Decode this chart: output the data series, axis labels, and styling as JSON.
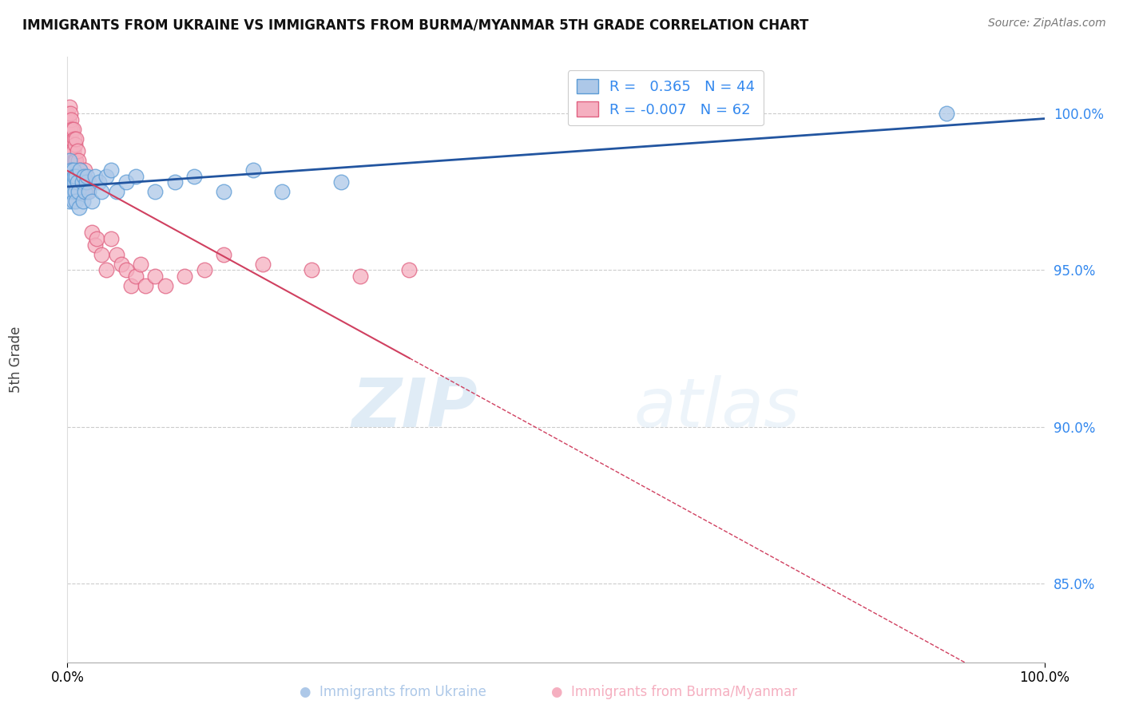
{
  "title": "IMMIGRANTS FROM UKRAINE VS IMMIGRANTS FROM BURMA/MYANMAR 5TH GRADE CORRELATION CHART",
  "source": "Source: ZipAtlas.com",
  "ylabel": "5th Grade",
  "y_ticks": [
    85.0,
    90.0,
    95.0,
    100.0
  ],
  "y_tick_labels": [
    "85.0%",
    "90.0%",
    "95.0%",
    "100.0%"
  ],
  "xlim": [
    0.0,
    1.0
  ],
  "ylim": [
    82.5,
    101.8
  ],
  "ukraine_R": 0.365,
  "ukraine_N": 44,
  "burma_R": -0.007,
  "burma_N": 62,
  "ukraine_color": "#adc8e8",
  "burma_color": "#f5afc0",
  "ukraine_edge_color": "#5b9bd5",
  "burma_edge_color": "#e06080",
  "ukraine_line_color": "#2255a0",
  "burma_line_color": "#d04060",
  "ukraine_scatter_x": [
    0.001,
    0.002,
    0.002,
    0.003,
    0.003,
    0.004,
    0.004,
    0.005,
    0.005,
    0.006,
    0.006,
    0.007,
    0.007,
    0.008,
    0.009,
    0.009,
    0.01,
    0.011,
    0.012,
    0.013,
    0.015,
    0.016,
    0.017,
    0.018,
    0.019,
    0.02,
    0.022,
    0.025,
    0.028,
    0.032,
    0.035,
    0.04,
    0.045,
    0.05,
    0.06,
    0.07,
    0.09,
    0.11,
    0.13,
    0.16,
    0.19,
    0.22,
    0.28,
    0.9
  ],
  "ukraine_scatter_y": [
    97.8,
    98.5,
    97.2,
    98.0,
    97.5,
    98.2,
    97.8,
    97.5,
    98.0,
    97.2,
    98.2,
    97.8,
    98.0,
    97.5,
    97.2,
    98.0,
    97.8,
    97.5,
    97.0,
    98.2,
    97.8,
    97.2,
    98.0,
    97.5,
    97.8,
    98.0,
    97.5,
    97.2,
    98.0,
    97.8,
    97.5,
    98.0,
    98.2,
    97.5,
    97.8,
    98.0,
    97.5,
    97.8,
    98.0,
    97.5,
    98.2,
    97.5,
    97.8,
    100.0
  ],
  "burma_scatter_x": [
    0.0,
    0.0,
    0.001,
    0.001,
    0.002,
    0.002,
    0.002,
    0.003,
    0.003,
    0.003,
    0.004,
    0.004,
    0.004,
    0.005,
    0.005,
    0.005,
    0.006,
    0.006,
    0.006,
    0.007,
    0.007,
    0.007,
    0.008,
    0.008,
    0.008,
    0.009,
    0.009,
    0.009,
    0.01,
    0.01,
    0.011,
    0.012,
    0.013,
    0.014,
    0.015,
    0.016,
    0.017,
    0.018,
    0.02,
    0.022,
    0.025,
    0.028,
    0.03,
    0.035,
    0.04,
    0.045,
    0.05,
    0.055,
    0.06,
    0.065,
    0.07,
    0.075,
    0.08,
    0.09,
    0.1,
    0.12,
    0.14,
    0.16,
    0.2,
    0.25,
    0.3,
    0.35
  ],
  "burma_scatter_y": [
    100.0,
    99.5,
    99.8,
    99.2,
    100.2,
    99.5,
    98.8,
    99.5,
    100.0,
    98.5,
    99.8,
    99.2,
    98.5,
    99.5,
    98.8,
    98.2,
    99.5,
    98.8,
    98.2,
    99.2,
    98.5,
    97.8,
    99.0,
    98.5,
    97.8,
    99.2,
    98.5,
    97.5,
    98.8,
    98.0,
    98.5,
    97.8,
    98.2,
    97.5,
    97.8,
    98.0,
    97.5,
    98.2,
    97.5,
    97.8,
    96.2,
    95.8,
    96.0,
    95.5,
    95.0,
    96.0,
    95.5,
    95.2,
    95.0,
    94.5,
    94.8,
    95.2,
    94.5,
    94.8,
    94.5,
    94.8,
    95.0,
    95.5,
    95.2,
    95.0,
    94.8,
    95.0
  ],
  "legend_ukraine_label": "R =   0.365   N = 44",
  "legend_burma_label": "R = -0.007   N = 62",
  "watermark_zip": "ZIP",
  "watermark_atlas": "atlas",
  "bottom_ukraine_label": "Immigrants from Ukraine",
  "bottom_burma_label": "Immigrants from Burma/Myanmar"
}
